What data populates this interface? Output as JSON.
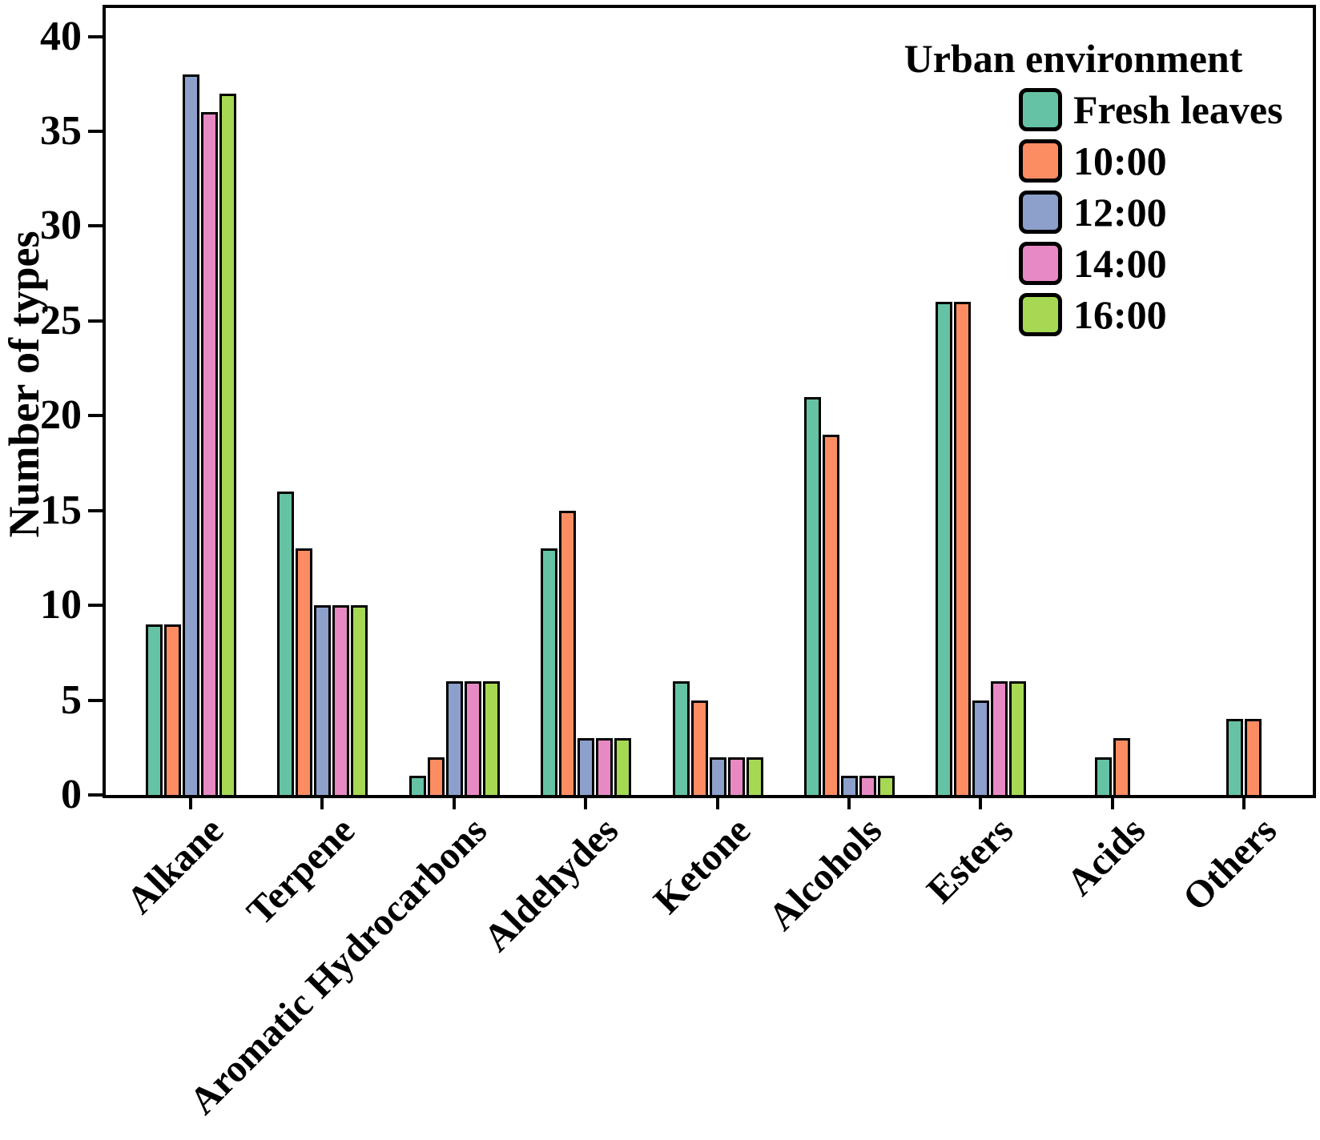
{
  "chart_data": {
    "type": "bar",
    "title": "",
    "categories": [
      "Alkane",
      "Terpene",
      "Aromatic Hydrocarbons",
      "Aldehydes",
      "Ketone",
      "Alcohols",
      "Esters",
      "Acids",
      "Others"
    ],
    "series": [
      {
        "name": "Fresh leaves",
        "color": "#66C2A5",
        "values": [
          9,
          16,
          1,
          13,
          6,
          21,
          26,
          2,
          4
        ]
      },
      {
        "name": "10:00",
        "color": "#FC8D62",
        "values": [
          9,
          13,
          2,
          15,
          5,
          19,
          26,
          3,
          4
        ]
      },
      {
        "name": "12:00",
        "color": "#8DA0CB",
        "values": [
          38,
          10,
          6,
          3,
          2,
          1,
          5,
          0,
          0
        ]
      },
      {
        "name": "14:00",
        "color": "#E78AC3",
        "values": [
          36,
          10,
          6,
          3,
          2,
          1,
          6,
          0,
          0
        ]
      },
      {
        "name": "16:00",
        "color": "#A6D854",
        "values": [
          37,
          10,
          6,
          3,
          2,
          1,
          6,
          0,
          0
        ]
      }
    ],
    "xlabel": "",
    "ylabel": "Number of types",
    "ylim": [
      0,
      41.5
    ],
    "yticks": [
      0,
      5,
      10,
      15,
      20,
      25,
      30,
      35,
      40
    ],
    "grid": false,
    "legend_title": "Urban environment",
    "legend_position": "top-right-inside",
    "bar_edge_color": "#000000",
    "axis_color": "#000000",
    "background": "#FFFFFF"
  }
}
